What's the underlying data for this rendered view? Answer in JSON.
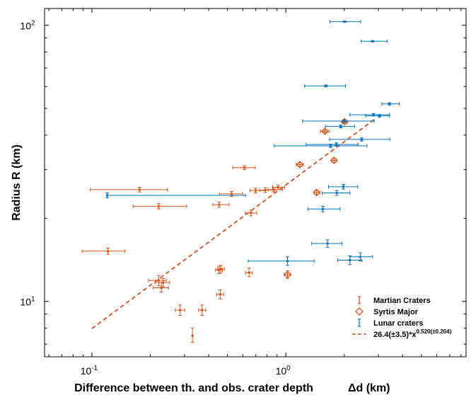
{
  "chart_data": {
    "type": "scatter",
    "title": "",
    "xlabel": "Difference between th. and obs. crater depth",
    "xlabel_symbol": "Δd (km)",
    "ylabel": "Radius R (km)",
    "xscale": "log",
    "yscale": "log",
    "xlim": [
      0.057,
      8.5
    ],
    "ylim": [
      6.3,
      115
    ],
    "x_ticks": [
      {
        "base": "10",
        "exp": "-1",
        "value": 0.1
      },
      {
        "base": "10",
        "exp": "0",
        "value": 1
      }
    ],
    "y_ticks": [
      {
        "base": "10",
        "exp": "1",
        "value": 10
      },
      {
        "base": "10",
        "exp": "2",
        "value": 100
      }
    ],
    "legend_position": "bottom-right",
    "colors": {
      "martian": "#d95319",
      "syrtis": "#d95319",
      "lunar": "#0072bd",
      "fit": "#d95319"
    },
    "series": [
      {
        "name": "Martian Craters",
        "marker": "point",
        "color": "#d95319",
        "points": [
          {
            "x": 0.121,
            "y": 15.2,
            "xlo": 0.089,
            "xhi": 0.148,
            "ylo": 14.8,
            "yhi": 15.6
          },
          {
            "x": 0.176,
            "y": 25.4,
            "xlo": 0.098,
            "xhi": 0.245,
            "ylo": 24.9,
            "yhi": 25.9
          },
          {
            "x": 0.221,
            "y": 22.1,
            "xlo": 0.163,
            "xhi": 0.308,
            "ylo": 21.6,
            "yhi": 22.6
          },
          {
            "x": 0.221,
            "y": 11.9,
            "xlo": 0.196,
            "xhi": 0.242,
            "ylo": 11.4,
            "yhi": 12.4
          },
          {
            "x": 0.228,
            "y": 11.2,
            "xlo": 0.207,
            "xhi": 0.248,
            "ylo": 10.8,
            "yhi": 11.7
          },
          {
            "x": 0.233,
            "y": 11.7,
            "xlo": 0.212,
            "xhi": 0.252,
            "ylo": 11.3,
            "yhi": 12.1
          },
          {
            "x": 0.285,
            "y": 9.3,
            "xlo": 0.269,
            "xhi": 0.301,
            "ylo": 8.9,
            "yhi": 9.7
          },
          {
            "x": 0.33,
            "y": 7.5,
            "xlo": 0.33,
            "xhi": 0.33,
            "ylo": 7.1,
            "yhi": 8.0
          },
          {
            "x": 0.37,
            "y": 9.3,
            "xlo": 0.355,
            "xhi": 0.386,
            "ylo": 8.9,
            "yhi": 9.7
          },
          {
            "x": 0.453,
            "y": 22.4,
            "xlo": 0.42,
            "xhi": 0.51,
            "ylo": 21.9,
            "yhi": 22.9
          },
          {
            "x": 0.452,
            "y": 13.0,
            "xlo": 0.434,
            "xhi": 0.471,
            "ylo": 12.6,
            "yhi": 13.4
          },
          {
            "x": 0.462,
            "y": 13.1,
            "xlo": 0.443,
            "xhi": 0.482,
            "ylo": 12.7,
            "yhi": 13.5
          },
          {
            "x": 0.459,
            "y": 10.6,
            "xlo": 0.44,
            "xhi": 0.478,
            "ylo": 10.2,
            "yhi": 11.0
          },
          {
            "x": 0.525,
            "y": 24.5,
            "xlo": 0.455,
            "xhi": 0.6,
            "ylo": 24.0,
            "yhi": 25.0
          },
          {
            "x": 0.612,
            "y": 30.5,
            "xlo": 0.532,
            "xhi": 0.695,
            "ylo": 30.0,
            "yhi": 31.0
          },
          {
            "x": 0.646,
            "y": 12.7,
            "xlo": 0.62,
            "xhi": 0.672,
            "ylo": 12.3,
            "yhi": 13.2
          },
          {
            "x": 0.661,
            "y": 20.9,
            "xlo": 0.618,
            "xhi": 0.707,
            "ylo": 20.4,
            "yhi": 21.4
          },
          {
            "x": 0.698,
            "y": 25.2,
            "xlo": 0.653,
            "xhi": 0.783,
            "ylo": 24.7,
            "yhi": 25.7
          },
          {
            "x": 0.784,
            "y": 25.3,
            "xlo": 0.733,
            "xhi": 0.88,
            "ylo": 24.8,
            "yhi": 25.8
          },
          {
            "x": 0.863,
            "y": 25.4,
            "xlo": 0.81,
            "xhi": 0.96,
            "ylo": 24.9,
            "yhi": 25.9
          },
          {
            "x": 0.911,
            "y": 25.9,
            "xlo": 0.855,
            "xhi": 0.985,
            "ylo": 25.4,
            "yhi": 26.4
          }
        ]
      },
      {
        "name": "Syrtis Major",
        "marker": "diamond",
        "color": "#d95319",
        "points": [
          {
            "x": 1.02,
            "y": 12.5,
            "xlo": 0.98,
            "xhi": 1.06,
            "ylo": 12.1,
            "yhi": 12.9
          },
          {
            "x": 1.18,
            "y": 31.3,
            "xlo": 1.13,
            "xhi": 1.23,
            "ylo": 30.8,
            "yhi": 31.8
          },
          {
            "x": 1.44,
            "y": 24.8,
            "xlo": 1.4,
            "xhi": 1.5,
            "ylo": 24.3,
            "yhi": 25.3
          },
          {
            "x": 1.59,
            "y": 41.3,
            "xlo": 1.51,
            "xhi": 1.67,
            "ylo": 40.8,
            "yhi": 41.8
          },
          {
            "x": 1.77,
            "y": 32.4,
            "xlo": 1.72,
            "xhi": 1.82,
            "ylo": 31.9,
            "yhi": 32.9
          },
          {
            "x": 2.01,
            "y": 44.7,
            "xlo": 1.95,
            "xhi": 2.08,
            "ylo": 44.2,
            "yhi": 45.2
          }
        ]
      },
      {
        "name": "Lunar craters",
        "marker": "point",
        "color": "#0072bd",
        "points": [
          {
            "x": 0.12,
            "y": 24.2,
            "xlo": 0.12,
            "xhi": 0.62,
            "ylo": 23.7,
            "yhi": 24.7
          },
          {
            "x": 1.02,
            "y": 14.0,
            "xlo": 0.64,
            "xhi": 1.4,
            "ylo": 13.5,
            "yhi": 14.5
          },
          {
            "x": 1.55,
            "y": 21.6,
            "xlo": 1.3,
            "xhi": 1.9,
            "ylo": 21.1,
            "yhi": 22.1
          },
          {
            "x": 1.64,
            "y": 16.2,
            "xlo": 1.36,
            "xhi": 1.95,
            "ylo": 15.7,
            "yhi": 16.7
          },
          {
            "x": 1.61,
            "y": 60.3,
            "xlo": 1.25,
            "xhi": 2.03,
            "ylo": 59.8,
            "yhi": 60.8
          },
          {
            "x": 1.7,
            "y": 36.6,
            "xlo": 0.87,
            "xhi": 2.62,
            "ylo": 36.1,
            "yhi": 37.1
          },
          {
            "x": 1.82,
            "y": 37.0,
            "xlo": 1.27,
            "xhi": 2.36,
            "ylo": 36.5,
            "yhi": 37.5
          },
          {
            "x": 1.83,
            "y": 24.7,
            "xlo": 1.54,
            "xhi": 2.14,
            "ylo": 24.2,
            "yhi": 25.2
          },
          {
            "x": 1.98,
            "y": 26.0,
            "xlo": 1.66,
            "xhi": 2.35,
            "ylo": 25.5,
            "yhi": 26.5
          },
          {
            "x": 1.92,
            "y": 43.0,
            "xlo": 1.6,
            "xhi": 2.26,
            "ylo": 42.5,
            "yhi": 43.5
          },
          {
            "x": 2.0,
            "y": 45.0,
            "xlo": 1.22,
            "xhi": 2.85,
            "ylo": 44.5,
            "yhi": 45.5
          },
          {
            "x": 2.01,
            "y": 103.0,
            "xlo": 1.69,
            "xhi": 2.43,
            "ylo": 102.5,
            "yhi": 103.5
          },
          {
            "x": 2.14,
            "y": 14.1,
            "xlo": 1.85,
            "xhi": 2.47,
            "ylo": 13.6,
            "yhi": 14.6
          },
          {
            "x": 2.42,
            "y": 14.5,
            "xlo": 2.14,
            "xhi": 2.8,
            "ylo": 14.0,
            "yhi": 15.0
          },
          {
            "x": 2.46,
            "y": 38.6,
            "xlo": 1.68,
            "xhi": 3.44,
            "ylo": 38.1,
            "yhi": 39.1
          },
          {
            "x": 2.8,
            "y": 87.5,
            "xlo": 2.44,
            "xhi": 3.33,
            "ylo": 87.0,
            "yhi": 88.0
          },
          {
            "x": 2.83,
            "y": 47.4,
            "xlo": 2.14,
            "xhi": 3.43,
            "ylo": 46.9,
            "yhi": 47.9
          },
          {
            "x": 3.04,
            "y": 47.0,
            "xlo": 2.58,
            "xhi": 3.43,
            "ylo": 46.5,
            "yhi": 47.5
          },
          {
            "x": 3.42,
            "y": 51.9,
            "xlo": 3.13,
            "xhi": 3.84,
            "ylo": 51.4,
            "yhi": 52.4
          }
        ]
      },
      {
        "name": "26.4(±3.5)*x",
        "superscript": "0.520(±0.204)",
        "marker": "dashed-line",
        "color": "#d95319",
        "fit": {
          "a": 26.4,
          "b": 0.52,
          "xmin": 0.1,
          "xmax": 2.9
        }
      }
    ]
  }
}
